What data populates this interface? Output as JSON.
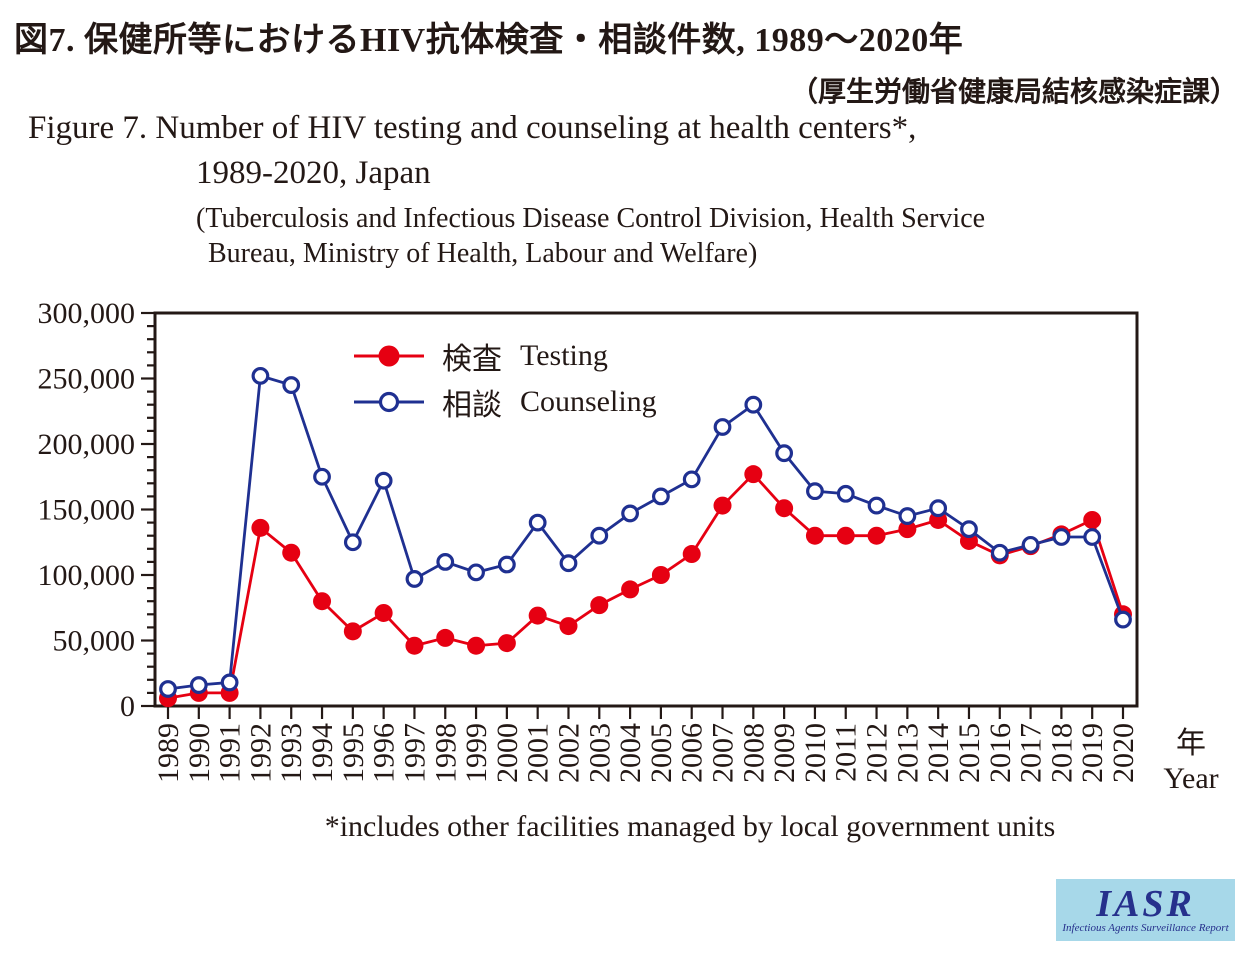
{
  "title": {
    "jp_line1": "図7. 保健所等におけるHIV抗体検査・相談件数, 1989～2020年",
    "jp_line2": "（厚生労働省健康局結核感染症課）",
    "en_line1": "Figure 7. Number of HIV testing and counseling at health centers*,",
    "en_line2": "1989-2020, Japan",
    "en_source_line1": "(Tuberculosis and Infectious Disease Control Division, Health Service",
    "en_source_line2": "Bureau, Ministry of Health, Labour and Welfare)"
  },
  "footnote": "*includes other facilities managed by local government units",
  "axis": {
    "x_unit_jp": "年",
    "x_unit_en": "Year",
    "ytick_labels": [
      "0",
      "50,000",
      "100,000",
      "150,000",
      "200,000",
      "250,000",
      "300,000"
    ]
  },
  "legend": [
    {
      "jp": "検査",
      "en": "Testing"
    },
    {
      "jp": "相談",
      "en": "Counseling"
    }
  ],
  "logo": {
    "text": "IASR",
    "subtext": "Infectious Agents Surveillance Report"
  },
  "colors": {
    "testing": "#e60012",
    "counseling": "#1f3091",
    "ink": "#231815",
    "logo_bg": "#a7d8e9",
    "logo_ink": "#26308c"
  },
  "chart_data": {
    "type": "line",
    "title": "Number of HIV testing and counseling at health centers, 1989-2020, Japan",
    "xlabel": "年 Year",
    "ylabel": "",
    "ylim": [
      0,
      300000
    ],
    "ytick_step": 50000,
    "y_minor_step": 10000,
    "grid": false,
    "legend_position": "top-left-inside",
    "categories": [
      "1989",
      "1990",
      "1991",
      "1992",
      "1993",
      "1994",
      "1995",
      "1996",
      "1997",
      "1998",
      "1999",
      "2000",
      "2001",
      "2002",
      "2003",
      "2004",
      "2005",
      "2006",
      "2007",
      "2008",
      "2009",
      "2010",
      "2011",
      "2012",
      "2013",
      "2014",
      "2015",
      "2016",
      "2017",
      "2018",
      "2019",
      "2020"
    ],
    "series": [
      {
        "name": "検査 Testing",
        "color": "#e60012",
        "marker": "filled-circle",
        "values": [
          6000,
          10000,
          10000,
          136000,
          117000,
          80000,
          57000,
          71000,
          46000,
          52000,
          46000,
          48000,
          69000,
          61000,
          77000,
          89000,
          100000,
          116000,
          153000,
          177000,
          151000,
          130000,
          130000,
          130000,
          135000,
          142000,
          126000,
          115000,
          122000,
          131000,
          142000,
          70000
        ]
      },
      {
        "name": "相談 Counseling",
        "color": "#1f3091",
        "marker": "open-circle",
        "values": [
          13000,
          16000,
          18000,
          252000,
          245000,
          175000,
          125000,
          172000,
          97000,
          110000,
          102000,
          108000,
          140000,
          109000,
          130000,
          147000,
          160000,
          173000,
          213000,
          230000,
          193000,
          164000,
          162000,
          153000,
          145000,
          151000,
          135000,
          117000,
          123000,
          129000,
          129000,
          66000
        ]
      }
    ]
  }
}
